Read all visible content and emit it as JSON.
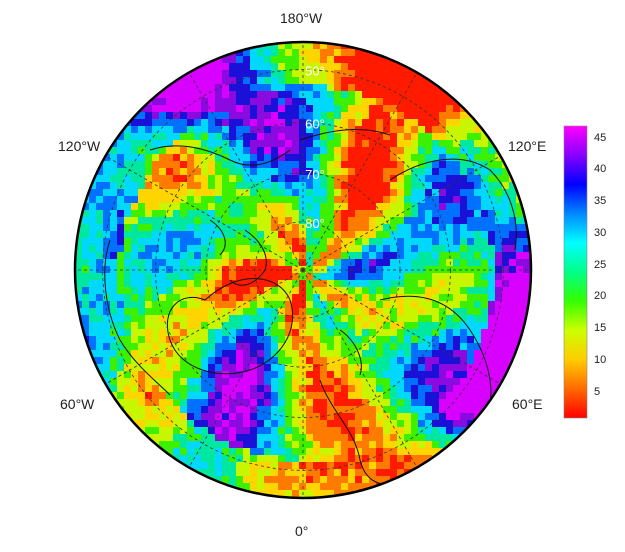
{
  "map": {
    "projection": "north-polar-stereographic",
    "longitude_labels": [
      {
        "key": "n",
        "text": "180°W"
      },
      {
        "key": "nw",
        "text": "120°W"
      },
      {
        "key": "ne",
        "text": "120°E"
      },
      {
        "key": "sw",
        "text": "60°W"
      },
      {
        "key": "se",
        "text": "60°E"
      },
      {
        "key": "s",
        "text": "0°"
      }
    ],
    "latitude_labels": [
      "50°",
      "60°",
      "70°",
      "80°"
    ],
    "latitude_circles": [
      50,
      60,
      70,
      80
    ],
    "meridians_every_deg": 30,
    "field_colors": [
      "#ff1a00",
      "#ff7b00",
      "#ffd500",
      "#c8f500",
      "#3cf000",
      "#00e8a0",
      "#00d8ff",
      "#0070ff",
      "#1a10d8",
      "#8a0ae0",
      "#d800ff"
    ]
  },
  "colorbar": {
    "min": 1,
    "max": 47,
    "ticks": [
      "5",
      "10",
      "15",
      "20",
      "25",
      "30",
      "35",
      "40",
      "45"
    ],
    "tick_values": [
      5,
      10,
      15,
      20,
      25,
      30,
      35,
      40,
      45
    ],
    "stops": [
      "#ff0000",
      "#ff6a00",
      "#ffcc00",
      "#ccff00",
      "#33ff00",
      "#00ff88",
      "#00ffff",
      "#0088ff",
      "#0000ff",
      "#8800ff",
      "#ff00ff"
    ]
  }
}
